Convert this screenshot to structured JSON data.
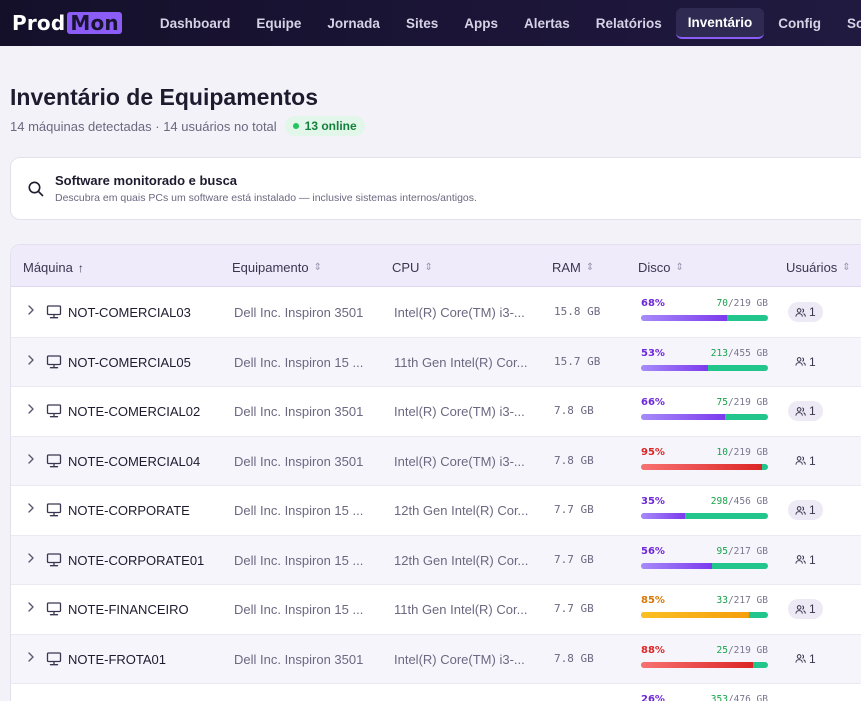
{
  "brand": {
    "part1": "Prod",
    "part2": "Mon"
  },
  "nav": {
    "items": [
      "Dashboard",
      "Equipe",
      "Jornada",
      "Sites",
      "Apps",
      "Alertas",
      "Relatórios",
      "Inventário",
      "Config",
      "Sobre"
    ],
    "active": "Inventário"
  },
  "header": {
    "title": "Inventário de Equipamentos",
    "subtitle": "14 máquinas detectadas · 14 usuários no total",
    "online_badge": "13 online"
  },
  "software_card": {
    "icon": "search-icon",
    "title": "Software monitorado e busca",
    "description": "Descubra em quais PCs um software está instalado — inclusive sistemas internos/antigos."
  },
  "table": {
    "columns": [
      {
        "label": "Máquina",
        "sort": "asc"
      },
      {
        "label": "Equipamento",
        "sort": "none"
      },
      {
        "label": "CPU",
        "sort": "none"
      },
      {
        "label": "RAM",
        "sort": "none"
      },
      {
        "label": "Disco",
        "sort": "none"
      },
      {
        "label": "Usuários",
        "sort": "none"
      }
    ],
    "rows": [
      {
        "machine": "NOT-COMERCIAL03",
        "equipment": "Dell Inc. Inspiron 3501",
        "cpu": "Intel(R) Core(TM) i3-...",
        "ram": "15.8 GB",
        "disk_pct": "68%",
        "disk_pct_value": 68,
        "disk_free": "70",
        "disk_total": "/219 GB",
        "level": "purple",
        "users": "1",
        "badge": true
      },
      {
        "machine": "NOT-COMERCIAL05",
        "equipment": "Dell Inc. Inspiron 15 ...",
        "cpu": "11th Gen Intel(R) Cor...",
        "ram": "15.7 GB",
        "disk_pct": "53%",
        "disk_pct_value": 53,
        "disk_free": "213",
        "disk_total": "/455 GB",
        "level": "purple",
        "users": "1",
        "badge": false
      },
      {
        "machine": "NOTE-COMERCIAL02",
        "equipment": "Dell Inc. Inspiron 3501",
        "cpu": "Intel(R) Core(TM) i3-...",
        "ram": "7.8 GB",
        "disk_pct": "66%",
        "disk_pct_value": 66,
        "disk_free": "75",
        "disk_total": "/219 GB",
        "level": "purple",
        "users": "1",
        "badge": true
      },
      {
        "machine": "NOTE-COMERCIAL04",
        "equipment": "Dell Inc. Inspiron 3501",
        "cpu": "Intel(R) Core(TM) i3-...",
        "ram": "7.8 GB",
        "disk_pct": "95%",
        "disk_pct_value": 95,
        "disk_free": "10",
        "disk_total": "/219 GB",
        "level": "red",
        "users": "1",
        "badge": false
      },
      {
        "machine": "NOTE-CORPORATE",
        "equipment": "Dell Inc. Inspiron 15 ...",
        "cpu": "12th Gen Intel(R) Cor...",
        "ram": "7.7 GB",
        "disk_pct": "35%",
        "disk_pct_value": 35,
        "disk_free": "298",
        "disk_total": "/456 GB",
        "level": "purple",
        "users": "1",
        "badge": true
      },
      {
        "machine": "NOTE-CORPORATE01",
        "equipment": "Dell Inc. Inspiron 15 ...",
        "cpu": "12th Gen Intel(R) Cor...",
        "ram": "7.7 GB",
        "disk_pct": "56%",
        "disk_pct_value": 56,
        "disk_free": "95",
        "disk_total": "/217 GB",
        "level": "purple",
        "users": "1",
        "badge": false
      },
      {
        "machine": "NOTE-FINANCEIRO",
        "equipment": "Dell Inc. Inspiron 15 ...",
        "cpu": "11th Gen Intel(R) Cor...",
        "ram": "7.7 GB",
        "disk_pct": "85%",
        "disk_pct_value": 85,
        "disk_free": "33",
        "disk_total": "/217 GB",
        "level": "orange",
        "users": "1",
        "badge": true
      },
      {
        "machine": "NOTE-FROTA01",
        "equipment": "Dell Inc. Inspiron 3501",
        "cpu": "Intel(R) Core(TM) i3-...",
        "ram": "7.8 GB",
        "disk_pct": "88%",
        "disk_pct_value": 88,
        "disk_free": "25",
        "disk_total": "/219 GB",
        "level": "red",
        "users": "1",
        "badge": false
      },
      {
        "machine": "",
        "equipment": "",
        "cpu": "",
        "ram": "",
        "disk_pct": "26%",
        "disk_pct_value": 26,
        "disk_free": "353",
        "disk_total": "/476 GB",
        "level": "purple",
        "users": "",
        "badge": true
      }
    ]
  },
  "colors": {
    "accent": "#8b5cf6",
    "purple_pct": "#6d28d9",
    "purple_bar": "#8b5cf6",
    "red": "#dc2626",
    "orange": "#d97706",
    "orange_bar": "#f59e0b",
    "free_bar": "#22c58b",
    "online": "#22c55e"
  }
}
